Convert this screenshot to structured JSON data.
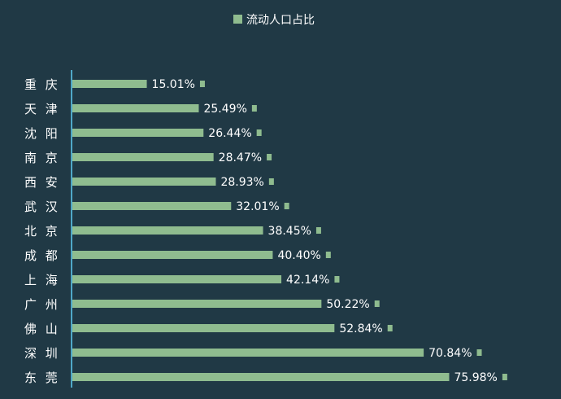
{
  "chart_data": {
    "type": "bar",
    "orientation": "horizontal",
    "legend": {
      "label": "流动人口占比",
      "position": "top-center"
    },
    "categories": [
      "重 庆",
      "天 津",
      "沈 阳",
      "南 京",
      "西 安",
      "武 汉",
      "北 京",
      "成 都",
      "上 海",
      "广 州",
      "佛 山",
      "深 圳",
      "东 莞"
    ],
    "values": [
      15.01,
      25.49,
      26.44,
      28.47,
      28.93,
      32.01,
      38.45,
      40.4,
      42.14,
      50.22,
      52.84,
      70.84,
      75.98
    ],
    "value_labels": [
      "15.01%",
      "25.49%",
      "26.44%",
      "28.47%",
      "28.93%",
      "32.01%",
      "38.45%",
      "40.40%",
      "42.14%",
      "50.22%",
      "52.84%",
      "70.84%",
      "75.98%"
    ],
    "xlim": [
      0,
      100
    ],
    "grid": false,
    "colors": {
      "bar": "#8fbc8f",
      "axis": "#4fa8c8",
      "background": "#203945",
      "text": "#ffffff"
    }
  }
}
